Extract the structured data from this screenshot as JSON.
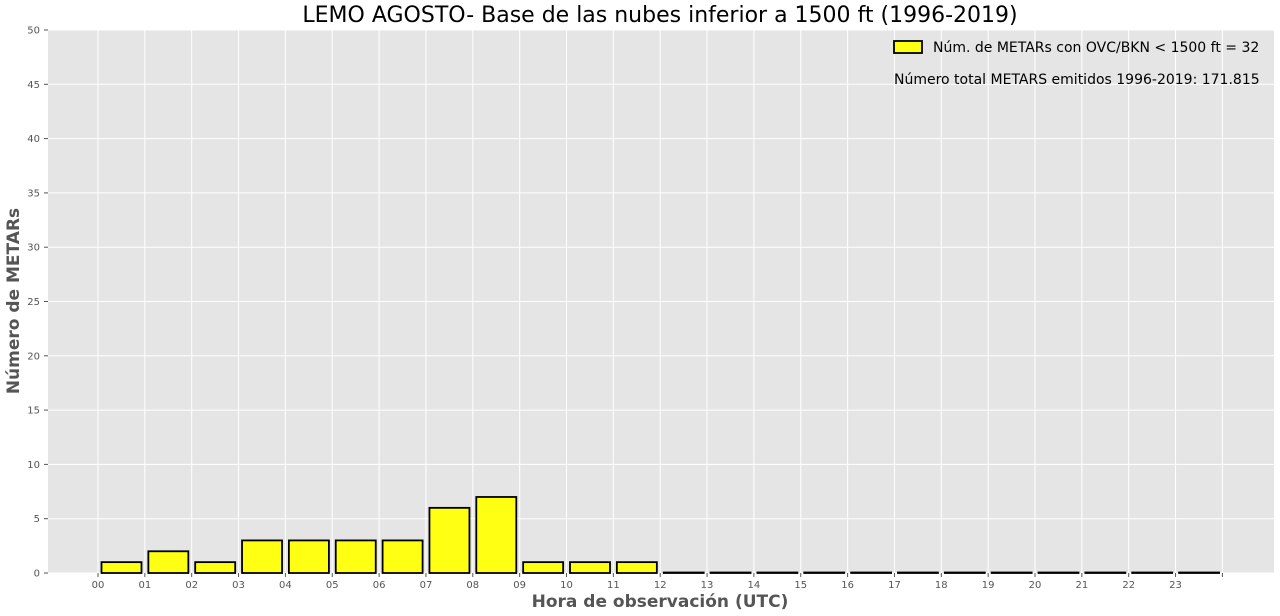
{
  "chart_data": {
    "type": "bar",
    "title": "LEMO AGOSTO- Base de las nubes inferior a 1500 ft (1996-2019)",
    "xlabel": "Hora de observación (UTC)",
    "ylabel": "Número de METARs",
    "categories": [
      "00",
      "01",
      "02",
      "03",
      "04",
      "05",
      "06",
      "07",
      "08",
      "09",
      "10",
      "11",
      "12",
      "13",
      "14",
      "15",
      "16",
      "17",
      "18",
      "19",
      "20",
      "21",
      "22",
      "23"
    ],
    "series": [
      {
        "name": "Núm. de METARs con OVC/BKN < 1500 ft = 32",
        "values": [
          1,
          2,
          1,
          3,
          3,
          3,
          3,
          6,
          7,
          1,
          1,
          1,
          0,
          0,
          0,
          0,
          0,
          0,
          0,
          0,
          0,
          0,
          0,
          0
        ]
      }
    ],
    "annotation": "Número total METARS emitidos 1996-2019: 171.815",
    "ylim": [
      0,
      50
    ],
    "yticks": [
      0,
      5,
      10,
      15,
      20,
      25,
      30,
      35,
      40,
      45,
      50
    ],
    "grid": true,
    "legend_position": "top-right",
    "colors": {
      "bar_fill": "#ffff14",
      "bar_edge": "#000000",
      "plot_background": "#e5e5e5",
      "grid": "#ffffff"
    }
  }
}
